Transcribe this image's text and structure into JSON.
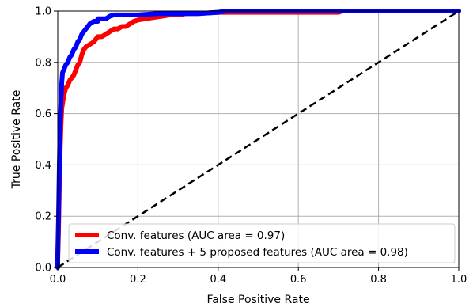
{
  "chart_data": {
    "type": "line",
    "title": "",
    "xlabel": "False Positive Rate",
    "ylabel": "True Positive Rate",
    "xlim": [
      0.0,
      1.0
    ],
    "ylim": [
      0.0,
      1.0
    ],
    "xticks": [
      "0.0",
      "0.2",
      "0.4",
      "0.6",
      "0.8",
      "1.0"
    ],
    "yticks": [
      "0.0",
      "0.2",
      "0.4",
      "0.6",
      "0.8",
      "1.0"
    ],
    "grid": true,
    "legend_position": "lower-right",
    "series": [
      {
        "name": "Conv. features (AUC area = 0.97)",
        "color": "#ff0000",
        "style": "solid",
        "points": [
          [
            0.0,
            0.0
          ],
          [
            0.0,
            0.03
          ],
          [
            0.002,
            0.15
          ],
          [
            0.004,
            0.32
          ],
          [
            0.006,
            0.45
          ],
          [
            0.008,
            0.55
          ],
          [
            0.01,
            0.62
          ],
          [
            0.015,
            0.67
          ],
          [
            0.02,
            0.7
          ],
          [
            0.025,
            0.71
          ],
          [
            0.03,
            0.73
          ],
          [
            0.035,
            0.74
          ],
          [
            0.04,
            0.75
          ],
          [
            0.045,
            0.77
          ],
          [
            0.05,
            0.79
          ],
          [
            0.055,
            0.8
          ],
          [
            0.06,
            0.83
          ],
          [
            0.065,
            0.85
          ],
          [
            0.07,
            0.86
          ],
          [
            0.08,
            0.87
          ],
          [
            0.09,
            0.88
          ],
          [
            0.1,
            0.9
          ],
          [
            0.11,
            0.9
          ],
          [
            0.12,
            0.91
          ],
          [
            0.13,
            0.92
          ],
          [
            0.14,
            0.93
          ],
          [
            0.15,
            0.93
          ],
          [
            0.16,
            0.94
          ],
          [
            0.17,
            0.94
          ],
          [
            0.18,
            0.95
          ],
          [
            0.19,
            0.96
          ],
          [
            0.2,
            0.965
          ],
          [
            0.22,
            0.97
          ],
          [
            0.24,
            0.975
          ],
          [
            0.26,
            0.98
          ],
          [
            0.28,
            0.985
          ],
          [
            0.3,
            0.985
          ],
          [
            0.32,
            0.99
          ],
          [
            0.35,
            0.99
          ],
          [
            0.4,
            0.995
          ],
          [
            0.45,
            0.995
          ],
          [
            0.5,
            0.995
          ],
          [
            0.6,
            0.995
          ],
          [
            0.7,
            0.995
          ],
          [
            0.71,
            1.0
          ],
          [
            0.8,
            1.0
          ],
          [
            1.0,
            1.0
          ]
        ]
      },
      {
        "name": "Conv. features + 5 proposed features (AUC area = 0.98)",
        "color": "#0000ff",
        "style": "solid",
        "points": [
          [
            0.0,
            0.0
          ],
          [
            0.0,
            0.05
          ],
          [
            0.002,
            0.2
          ],
          [
            0.004,
            0.4
          ],
          [
            0.006,
            0.55
          ],
          [
            0.008,
            0.65
          ],
          [
            0.01,
            0.72
          ],
          [
            0.012,
            0.76
          ],
          [
            0.015,
            0.77
          ],
          [
            0.02,
            0.79
          ],
          [
            0.025,
            0.8
          ],
          [
            0.03,
            0.82
          ],
          [
            0.035,
            0.83
          ],
          [
            0.04,
            0.85
          ],
          [
            0.045,
            0.86
          ],
          [
            0.05,
            0.88
          ],
          [
            0.055,
            0.89
          ],
          [
            0.06,
            0.91
          ],
          [
            0.065,
            0.92
          ],
          [
            0.07,
            0.93
          ],
          [
            0.075,
            0.94
          ],
          [
            0.08,
            0.95
          ],
          [
            0.09,
            0.96
          ],
          [
            0.1,
            0.96
          ],
          [
            0.1,
            0.97
          ],
          [
            0.12,
            0.97
          ],
          [
            0.13,
            0.98
          ],
          [
            0.14,
            0.985
          ],
          [
            0.16,
            0.985
          ],
          [
            0.2,
            0.985
          ],
          [
            0.25,
            0.99
          ],
          [
            0.3,
            0.99
          ],
          [
            0.35,
            0.99
          ],
          [
            0.4,
            0.995
          ],
          [
            0.42,
            1.0
          ],
          [
            1.0,
            1.0
          ]
        ]
      },
      {
        "name": "",
        "color": "#000000",
        "style": "dashed",
        "points": [
          [
            0.0,
            0.0
          ],
          [
            1.0,
            1.0
          ]
        ]
      }
    ]
  }
}
